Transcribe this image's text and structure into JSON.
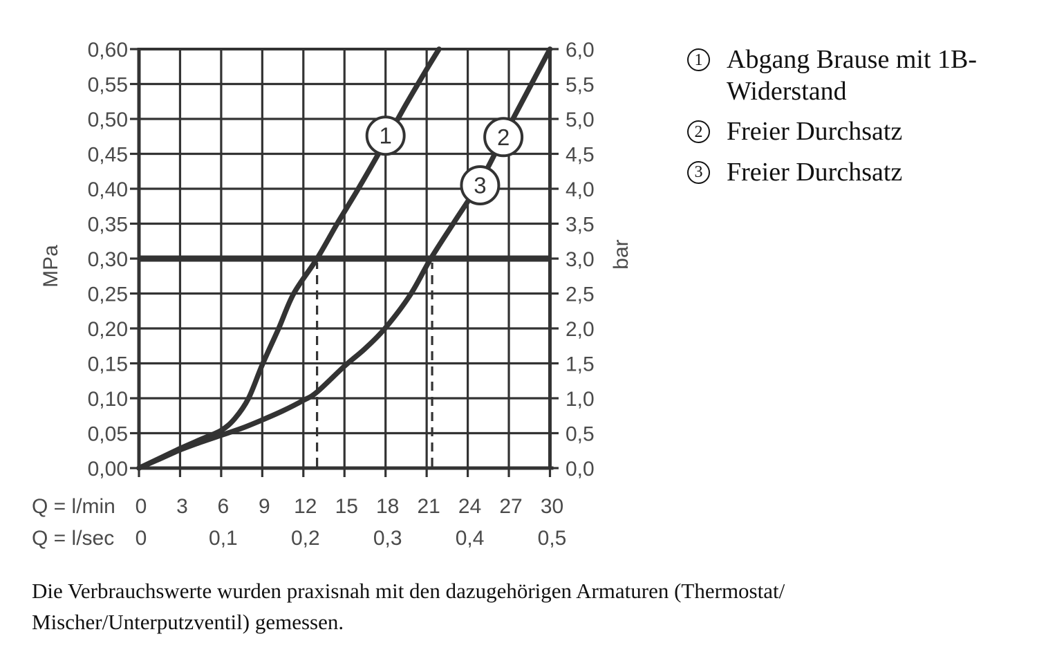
{
  "chart_data": {
    "type": "line",
    "title": "",
    "grid": true,
    "x_axis": {
      "unit_primary": "Q = l/min",
      "unit_secondary": "Q = l/sec",
      "range_lmin": [
        0,
        30
      ],
      "grid_step_lmin": 3,
      "ticks_lmin": [
        {
          "q": 0,
          "label": "0"
        },
        {
          "q": 3,
          "label": "3"
        },
        {
          "q": 6,
          "label": "6"
        },
        {
          "q": 9,
          "label": "9"
        },
        {
          "q": 12,
          "label": "12"
        },
        {
          "q": 15,
          "label": "15"
        },
        {
          "q": 18,
          "label": "18"
        },
        {
          "q": 21,
          "label": "21"
        },
        {
          "q": 24,
          "label": "24"
        },
        {
          "q": 27,
          "label": "27"
        },
        {
          "q": 30,
          "label": "30"
        }
      ],
      "ticks_lsec": [
        {
          "q": 0,
          "label": "0"
        },
        {
          "q": 6,
          "label": "0,1"
        },
        {
          "q": 12,
          "label": "0,2"
        },
        {
          "q": 18,
          "label": "0,3"
        },
        {
          "q": 24,
          "label": "0,4"
        },
        {
          "q": 30,
          "label": "0,5"
        }
      ]
    },
    "y_axis_left": {
      "unit": "MPa",
      "range_mpa": [
        0,
        0.6
      ],
      "grid_step_mpa": 0.05,
      "ticks": [
        {
          "mpa": 0.0,
          "label": "0,00"
        },
        {
          "mpa": 0.05,
          "label": "0,05"
        },
        {
          "mpa": 0.1,
          "label": "0,10"
        },
        {
          "mpa": 0.15,
          "label": "0,15"
        },
        {
          "mpa": 0.2,
          "label": "0,20"
        },
        {
          "mpa": 0.25,
          "label": "0,25"
        },
        {
          "mpa": 0.3,
          "label": "0,30"
        },
        {
          "mpa": 0.35,
          "label": "0,35"
        },
        {
          "mpa": 0.4,
          "label": "0,40"
        },
        {
          "mpa": 0.45,
          "label": "0,45"
        },
        {
          "mpa": 0.5,
          "label": "0,50"
        },
        {
          "mpa": 0.55,
          "label": "0,55"
        },
        {
          "mpa": 0.6,
          "label": "0,60"
        }
      ]
    },
    "y_axis_right": {
      "unit": "bar",
      "ticks": [
        {
          "mpa": 0.0,
          "label": "0,0"
        },
        {
          "mpa": 0.05,
          "label": "0,5"
        },
        {
          "mpa": 0.1,
          "label": "1,0"
        },
        {
          "mpa": 0.15,
          "label": "1,5"
        },
        {
          "mpa": 0.2,
          "label": "2,0"
        },
        {
          "mpa": 0.25,
          "label": "2,5"
        },
        {
          "mpa": 0.3,
          "label": "3,0"
        },
        {
          "mpa": 0.35,
          "label": "3,5"
        },
        {
          "mpa": 0.4,
          "label": "4,0"
        },
        {
          "mpa": 0.45,
          "label": "4,5"
        },
        {
          "mpa": 0.5,
          "label": "5,0"
        },
        {
          "mpa": 0.55,
          "label": "5,5"
        },
        {
          "mpa": 0.6,
          "label": "6,0"
        }
      ]
    },
    "reference_line": {
      "mpa": 0.3,
      "bar": 3.0
    },
    "dashed_guides": [
      {
        "q": 13.0,
        "to_mpa": 0.3
      },
      {
        "q": 21.4,
        "to_mpa": 0.3
      }
    ],
    "series": [
      {
        "id": "curve-1",
        "legend_numbers": [
          "1"
        ],
        "points_lmin_mpa": [
          [
            0,
            0
          ],
          [
            1.5,
            0.014
          ],
          [
            3,
            0.028
          ],
          [
            4.5,
            0.041
          ],
          [
            6,
            0.054
          ],
          [
            7,
            0.071
          ],
          [
            8,
            0.1
          ],
          [
            9,
            0.148
          ],
          [
            10.2,
            0.2
          ],
          [
            11.3,
            0.25
          ],
          [
            13,
            0.3
          ],
          [
            14.5,
            0.351
          ],
          [
            16.1,
            0.403
          ],
          [
            18,
            0.468
          ],
          [
            19.5,
            0.521
          ],
          [
            21,
            0.571
          ],
          [
            21.9,
            0.6
          ]
        ],
        "markers": [
          {
            "label": "1",
            "q": 18.0,
            "mpa": 0.476
          }
        ]
      },
      {
        "id": "curve-2-3",
        "legend_numbers": [
          "2",
          "3"
        ],
        "points_lmin_mpa": [
          [
            0,
            0
          ],
          [
            1.5,
            0.013
          ],
          [
            3,
            0.026
          ],
          [
            4.5,
            0.037
          ],
          [
            6,
            0.047
          ],
          [
            7.5,
            0.057
          ],
          [
            9,
            0.069
          ],
          [
            10.5,
            0.082
          ],
          [
            12,
            0.097
          ],
          [
            13,
            0.109
          ],
          [
            15,
            0.146
          ],
          [
            16.5,
            0.171
          ],
          [
            18,
            0.201
          ],
          [
            19.8,
            0.248
          ],
          [
            21.3,
            0.3
          ],
          [
            23,
            0.352
          ],
          [
            24.9,
            0.41
          ],
          [
            26.6,
            0.474
          ],
          [
            28.3,
            0.537
          ],
          [
            30,
            0.6
          ]
        ],
        "markers": [
          {
            "label": "2",
            "q": 26.6,
            "mpa": 0.474
          },
          {
            "label": "3",
            "q": 24.9,
            "mpa": 0.405
          }
        ]
      }
    ]
  },
  "legend": {
    "items": [
      {
        "number": "1",
        "label": "Abgang Brause mit 1B-\nWiderstand"
      },
      {
        "number": "2",
        "label": "Freier Durchsatz"
      },
      {
        "number": "3",
        "label": "Freier Durchsatz"
      }
    ]
  },
  "footer": {
    "line1": "Die Verbrauchswerte wurden praxisnah mit den dazugehörigen Armaturen (Thermostat/",
    "line2": "Mischer/Unterputzventil) gemessen."
  },
  "colors": {
    "ink": "#333333",
    "tick_label": "#4a4a4a",
    "text": "#111111",
    "marker_fill": "#ffffff",
    "background": "#ffffff"
  }
}
